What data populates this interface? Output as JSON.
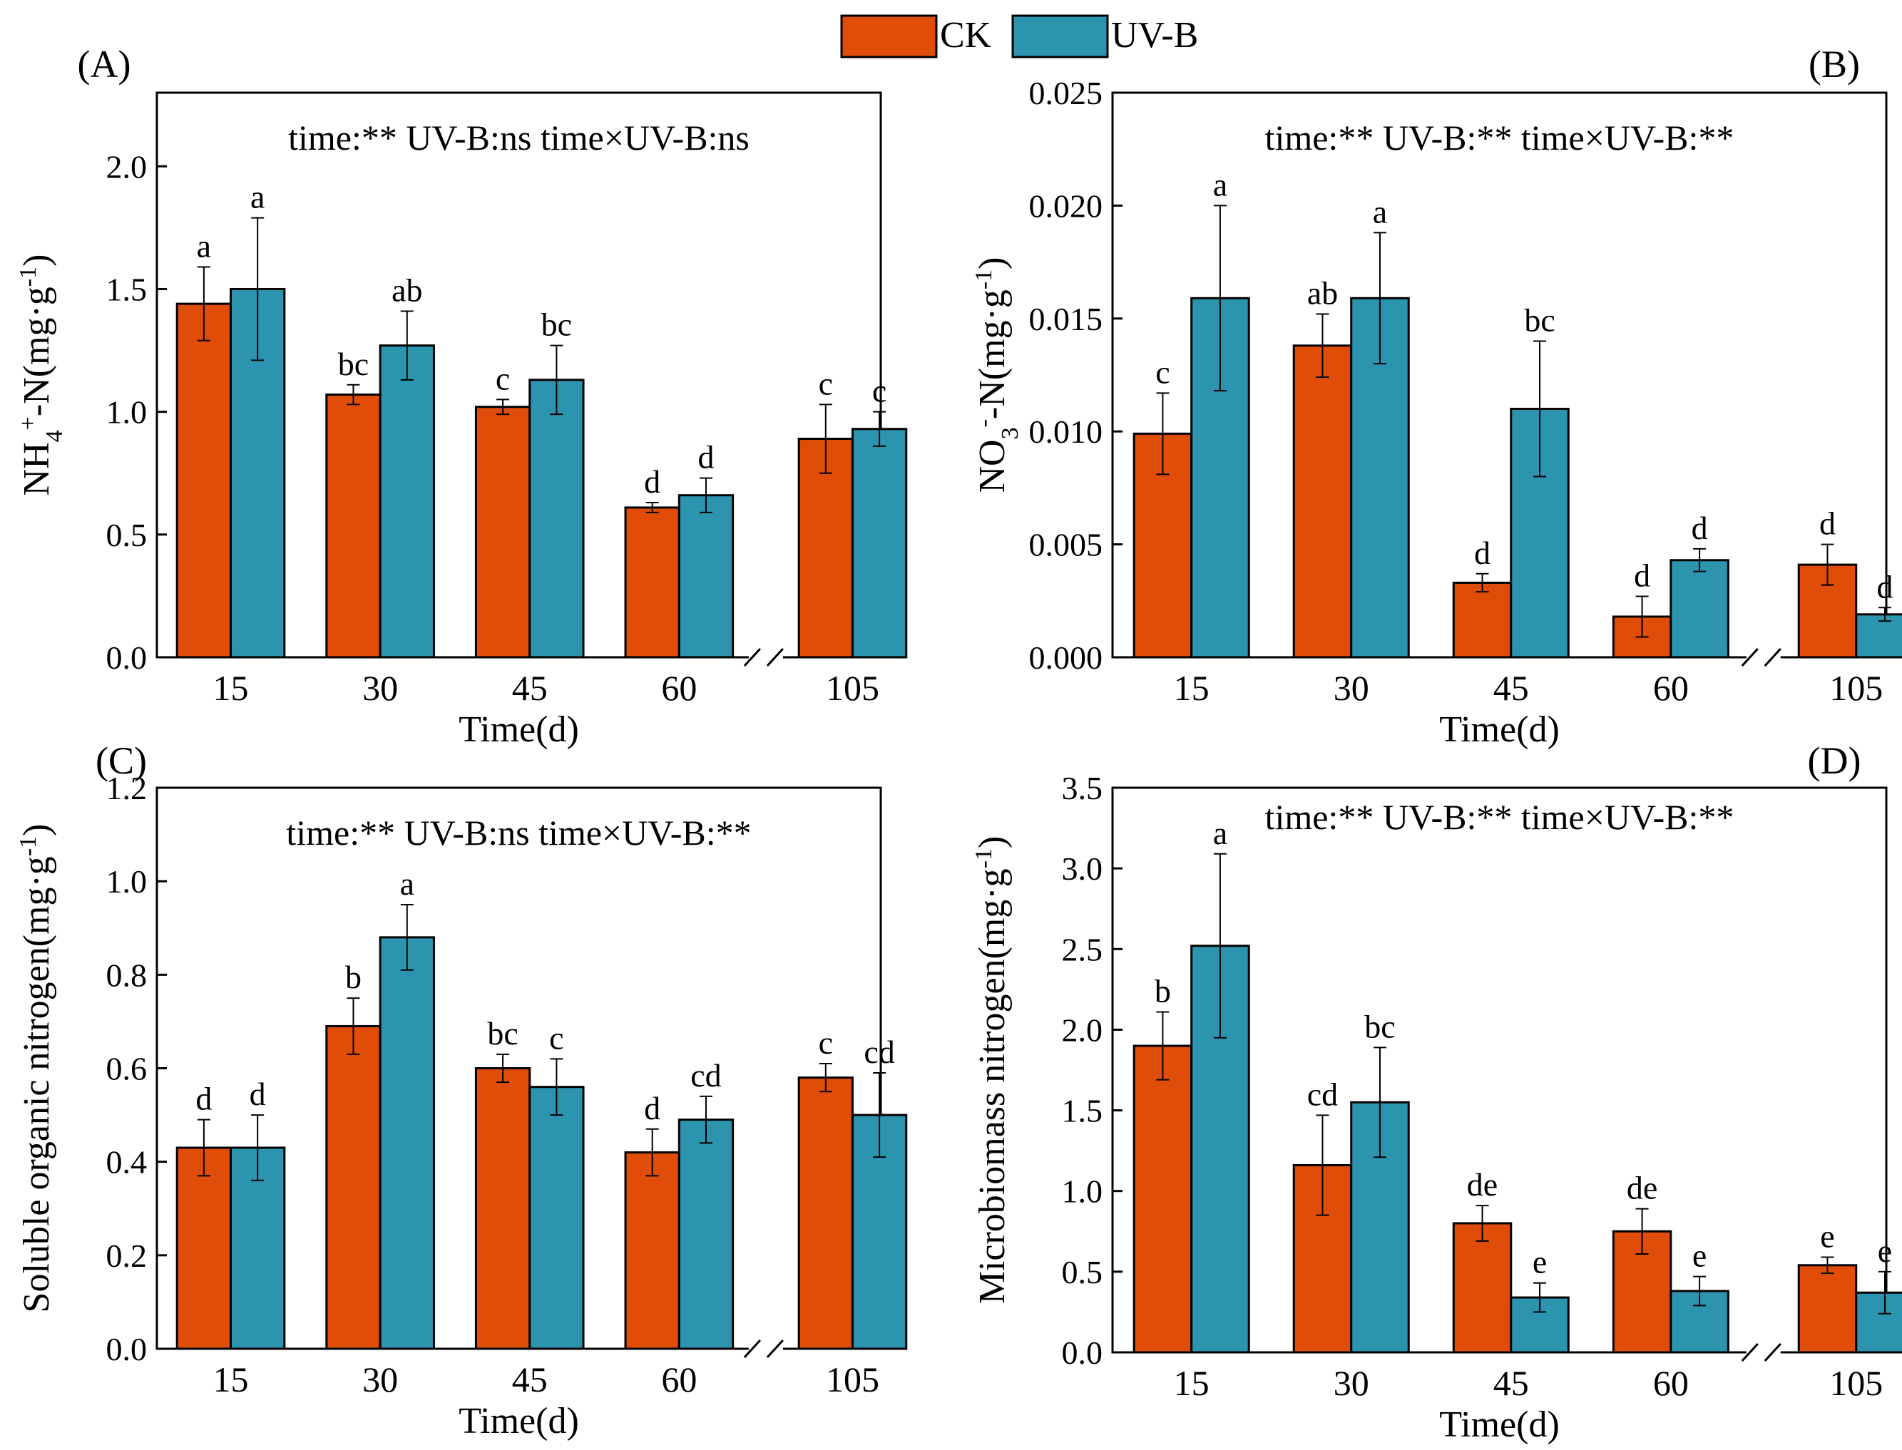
{
  "legend": {
    "position": "top-center",
    "items": [
      {
        "label": "CK",
        "color": "#E04D08"
      },
      {
        "label": "UV-B",
        "color": "#2C94AF"
      }
    ]
  },
  "chart_data": [
    {
      "type": "bar",
      "panel_label": "(A)",
      "stats": "time:**   UV-B:ns   time×UV-B:ns",
      "xlabel": "Time(d)",
      "ylabel": {
        "base": "NH",
        "sub": "4",
        "sup": "+",
        "rest": "-N(mg·g",
        "unit_sup": "-1",
        "close": ")"
      },
      "categories": [
        "15",
        "30",
        "45",
        "60",
        "105"
      ],
      "axis_break_between": [
        "60",
        "105"
      ],
      "ylim": [
        0,
        2.3
      ],
      "yticks": [
        0.0,
        0.5,
        1.0,
        1.5,
        2.0
      ],
      "ytick_labels": [
        "0.0",
        "0.5",
        "1.0",
        "1.5",
        "2.0"
      ],
      "series": [
        {
          "name": "CK",
          "color": "#E04D08",
          "values": [
            1.44,
            1.07,
            1.02,
            0.61,
            0.89
          ],
          "errors": [
            0.15,
            0.04,
            0.03,
            0.02,
            0.14
          ],
          "letters": [
            "a",
            "bc",
            "c",
            "d",
            "c"
          ]
        },
        {
          "name": "UV-B",
          "color": "#2C94AF",
          "values": [
            1.5,
            1.27,
            1.13,
            0.66,
            0.93
          ],
          "errors": [
            0.29,
            0.14,
            0.14,
            0.07,
            0.07
          ],
          "letters": [
            "a",
            "ab",
            "bc",
            "d",
            "c"
          ]
        }
      ]
    },
    {
      "type": "bar",
      "panel_label": "(B)",
      "stats": "time:**   UV-B:**   time×UV-B:**",
      "xlabel": "Time(d)",
      "ylabel": {
        "base": "NO",
        "sub": "3",
        "sup": "-",
        "rest": "-N(mg·g",
        "unit_sup": "-1",
        "close": ")"
      },
      "categories": [
        "15",
        "30",
        "45",
        "60",
        "105"
      ],
      "axis_break_between": [
        "60",
        "105"
      ],
      "ylim": [
        0,
        0.025
      ],
      "yticks": [
        0.0,
        0.005,
        0.01,
        0.015,
        0.02,
        0.025
      ],
      "ytick_labels": [
        "0.000",
        "0.005",
        "0.010",
        "0.015",
        "0.020",
        "0.025"
      ],
      "series": [
        {
          "name": "CK",
          "color": "#E04D08",
          "values": [
            0.0099,
            0.0138,
            0.0033,
            0.0018,
            0.0041
          ],
          "errors": [
            0.0018,
            0.0014,
            0.0004,
            0.0009,
            0.0009
          ],
          "letters": [
            "c",
            "ab",
            "d",
            "d",
            "d"
          ]
        },
        {
          "name": "UV-B",
          "color": "#2C94AF",
          "values": [
            0.0159,
            0.0159,
            0.011,
            0.0043,
            0.0019
          ],
          "errors": [
            0.0041,
            0.0029,
            0.003,
            0.0005,
            0.0003
          ],
          "letters": [
            "a",
            "a",
            "bc",
            "d",
            "d"
          ]
        }
      ]
    },
    {
      "type": "bar",
      "panel_label": "(C)",
      "stats": "time:**   UV-B:ns   time×UV-B:**",
      "xlabel": "Time(d)",
      "ylabel": {
        "base": "Soluble organic nitrogen(mg·g",
        "sub": "",
        "sup": "",
        "rest": "",
        "unit_sup": "-1",
        "close": ")"
      },
      "categories": [
        "15",
        "30",
        "45",
        "60",
        "105"
      ],
      "axis_break_between": [
        "60",
        "105"
      ],
      "ylim": [
        0,
        1.2
      ],
      "yticks": [
        0.0,
        0.2,
        0.4,
        0.6,
        0.8,
        1.0,
        1.2
      ],
      "ytick_labels": [
        "0.0",
        "0.2",
        "0.4",
        "0.6",
        "0.8",
        "1.0",
        "1.2"
      ],
      "series": [
        {
          "name": "CK",
          "color": "#E04D08",
          "values": [
            0.43,
            0.69,
            0.6,
            0.42,
            0.58
          ],
          "errors": [
            0.06,
            0.06,
            0.03,
            0.05,
            0.03
          ],
          "letters": [
            "d",
            "b",
            "bc",
            "d",
            "c"
          ]
        },
        {
          "name": "UV-B",
          "color": "#2C94AF",
          "values": [
            0.43,
            0.88,
            0.56,
            0.49,
            0.5
          ],
          "errors": [
            0.07,
            0.07,
            0.06,
            0.05,
            0.09
          ],
          "letters": [
            "d",
            "a",
            "c",
            "cd",
            "cd"
          ]
        }
      ]
    },
    {
      "type": "bar",
      "panel_label": "(D)",
      "stats": "time:**   UV-B:**   time×UV-B:**",
      "xlabel": "Time(d)",
      "ylabel": {
        "base": "Microbiomass nitrogen(mg·g",
        "sub": "",
        "sup": "",
        "rest": "",
        "unit_sup": "-1",
        "close": ")"
      },
      "categories": [
        "15",
        "30",
        "45",
        "60",
        "105"
      ],
      "axis_break_between": [
        "60",
        "105"
      ],
      "ylim": [
        0,
        3.5
      ],
      "yticks": [
        0.0,
        0.5,
        1.0,
        1.5,
        2.0,
        2.5,
        3.0,
        3.5
      ],
      "ytick_labels": [
        "0.0",
        "0.5",
        "1.0",
        "1.5",
        "2.0",
        "2.5",
        "3.0",
        "3.5"
      ],
      "series": [
        {
          "name": "CK",
          "color": "#E04D08",
          "values": [
            1.9,
            1.16,
            0.8,
            0.75,
            0.54
          ],
          "errors": [
            0.21,
            0.31,
            0.11,
            0.14,
            0.05
          ],
          "letters": [
            "b",
            "cd",
            "de",
            "de",
            "e"
          ]
        },
        {
          "name": "UV-B",
          "color": "#2C94AF",
          "values": [
            2.52,
            1.55,
            0.34,
            0.38,
            0.37
          ],
          "errors": [
            0.57,
            0.34,
            0.09,
            0.09,
            0.13
          ],
          "letters": [
            "a",
            "bc",
            "e",
            "e",
            "e"
          ]
        }
      ]
    }
  ]
}
